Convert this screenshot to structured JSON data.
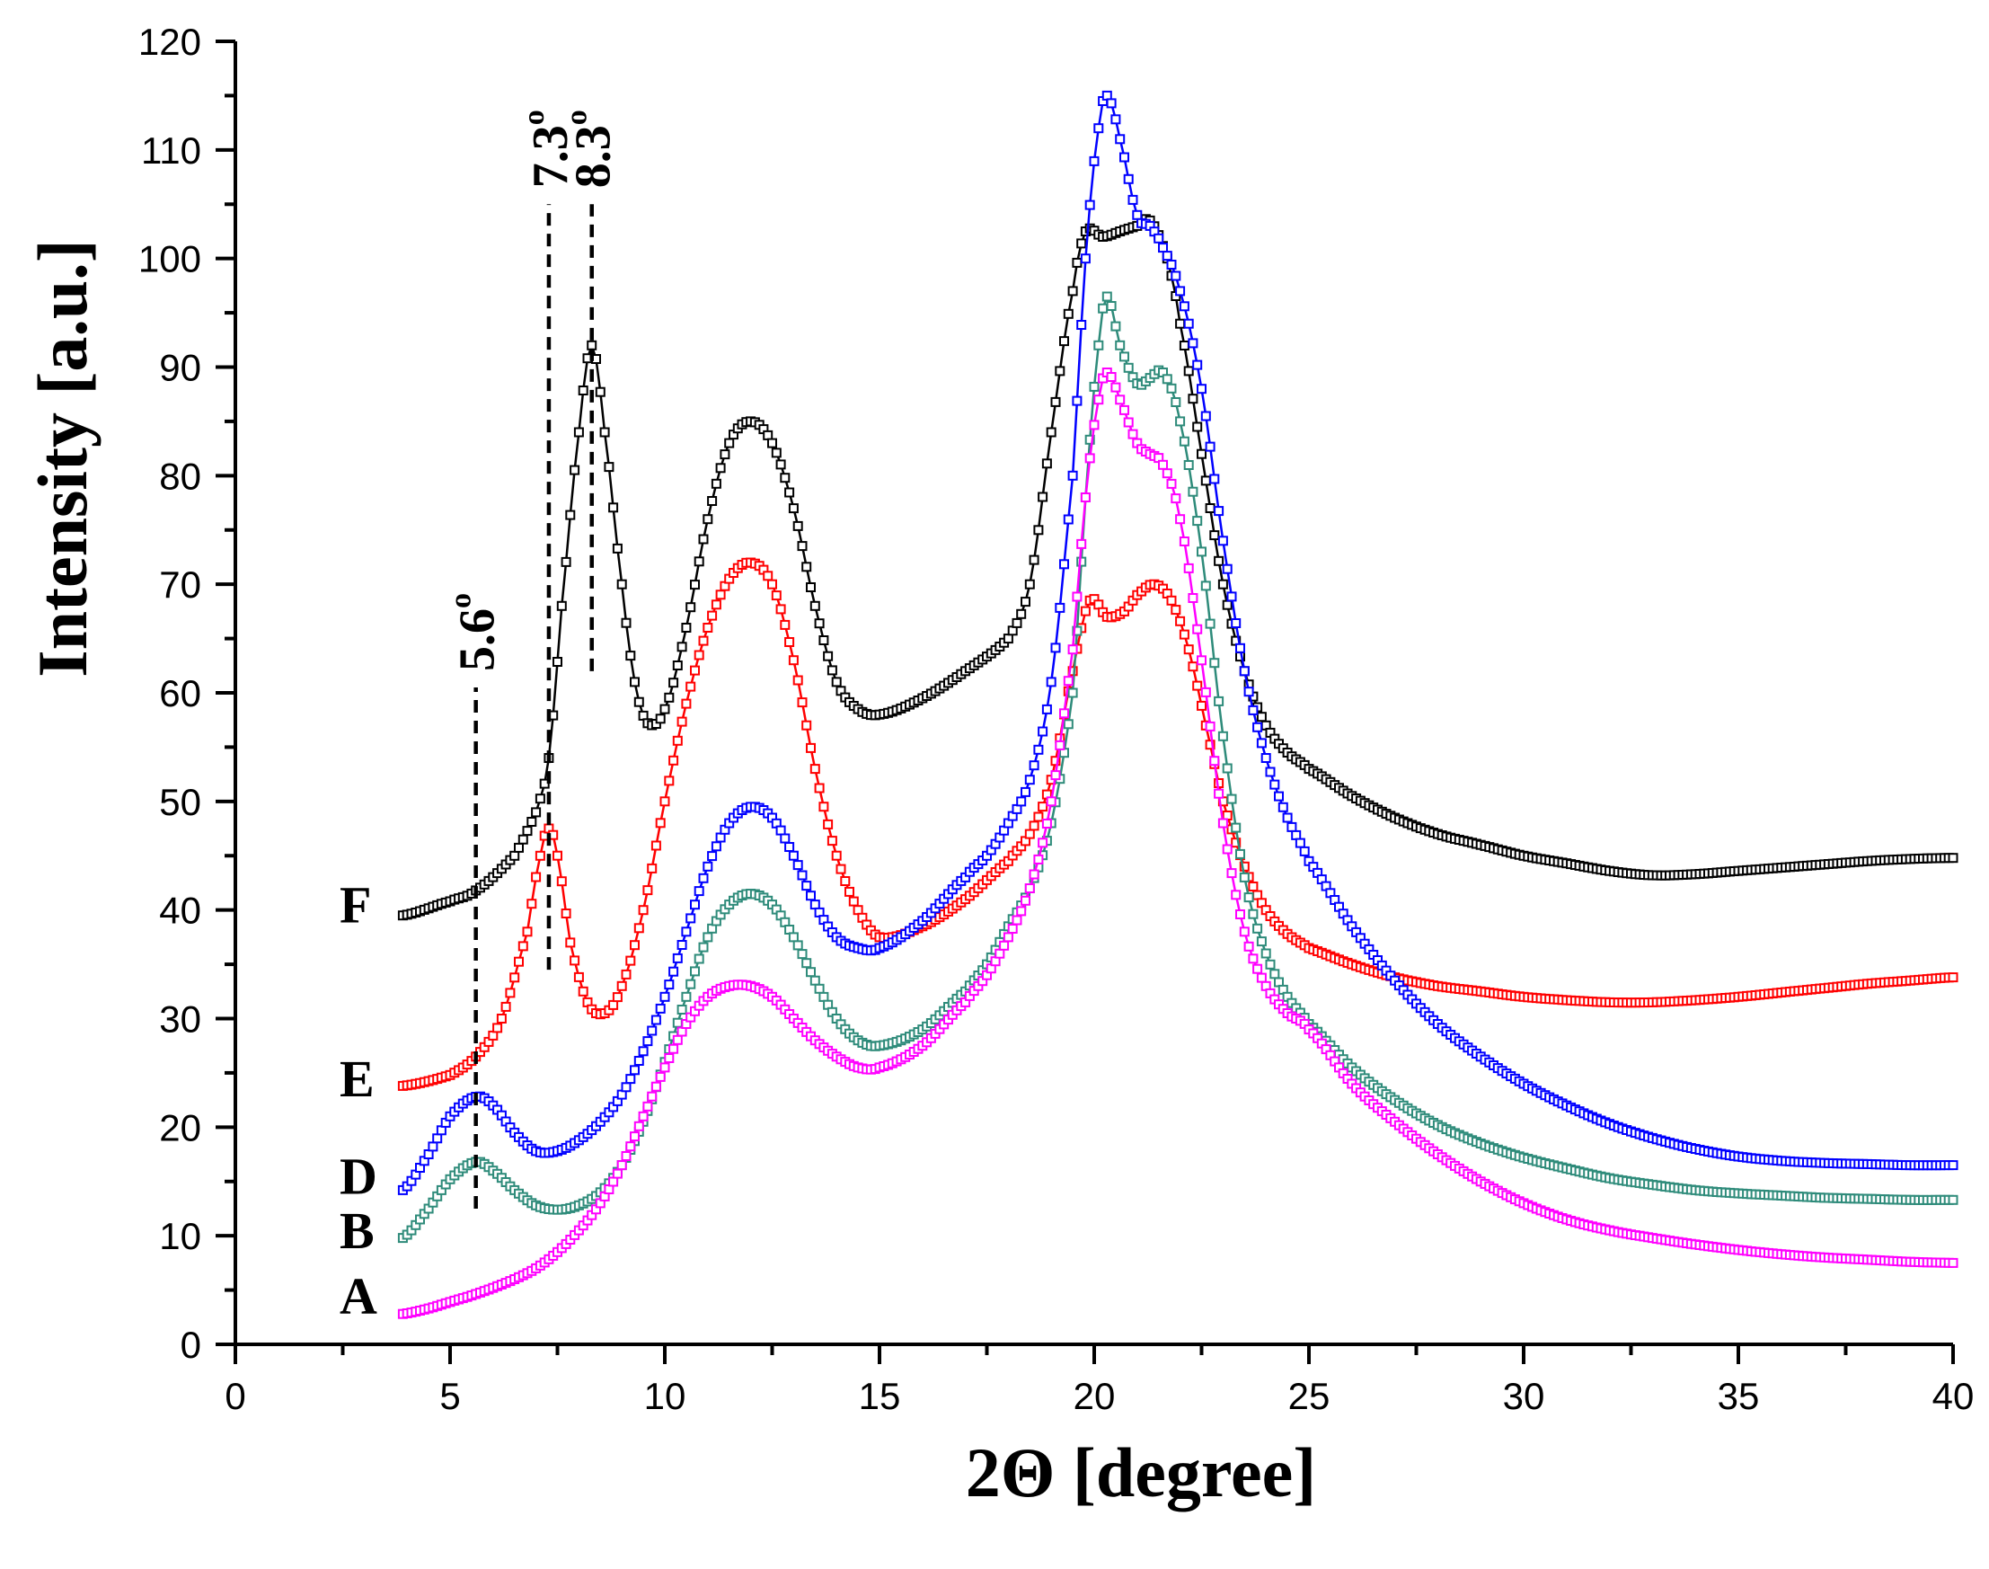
{
  "chart_data": {
    "type": "scatter",
    "xlabel": "2Θ [degree]",
    "ylabel": "Intensity [a.u.]",
    "xlim": [
      0,
      40
    ],
    "ylim": [
      0,
      120
    ],
    "x_ticks": [
      0,
      5,
      10,
      15,
      20,
      25,
      30,
      35,
      40
    ],
    "y_ticks": [
      0,
      10,
      20,
      30,
      40,
      50,
      60,
      70,
      80,
      90,
      100,
      110,
      120
    ],
    "grid": false,
    "legend": "none",
    "series": [
      {
        "name": "F",
        "color": "#000000",
        "x": [
          3.9,
          5.0,
          5.6,
          6.5,
          7.0,
          7.3,
          7.6,
          8.0,
          8.3,
          8.6,
          9.0,
          9.3,
          9.6,
          10.0,
          10.5,
          11.0,
          11.5,
          12.0,
          12.5,
          13.0,
          13.5,
          14.0,
          14.5,
          15.0,
          16.0,
          17.0,
          18.0,
          18.5,
          19.0,
          19.5,
          19.8,
          20.2,
          20.6,
          21.0,
          21.3,
          21.7,
          22.0,
          22.5,
          23.0,
          23.5,
          24.0,
          24.5,
          25.0,
          26.0,
          27.0,
          28.0,
          29.0,
          30.0,
          31.0,
          32.0,
          33.0,
          34.0,
          35.0,
          36.0,
          37.0,
          38.0,
          39.0,
          40.0
        ],
        "values": [
          39.5,
          40.8,
          41.8,
          45,
          49,
          54,
          68,
          84,
          92,
          84,
          70,
          61,
          57.2,
          58.5,
          66,
          76,
          83,
          85,
          83,
          77,
          68,
          61,
          58.5,
          58,
          59.5,
          62,
          65,
          70,
          84,
          97,
          102.5,
          102,
          102.5,
          103,
          103.5,
          100,
          94,
          82,
          70,
          62,
          57,
          54.5,
          53,
          50.5,
          48.5,
          47,
          46,
          45,
          44.3,
          43.6,
          43.2,
          43.3,
          43.6,
          43.9,
          44.2,
          44.5,
          44.7,
          44.8
        ]
      },
      {
        "name": "E",
        "color": "#ff0000",
        "x": [
          3.9,
          5.0,
          5.6,
          6.2,
          6.8,
          7.1,
          7.3,
          7.5,
          7.8,
          8.2,
          8.6,
          9.0,
          9.5,
          10.0,
          10.5,
          11.0,
          11.5,
          12.0,
          12.5,
          13.0,
          13.5,
          14.0,
          14.5,
          15.0,
          16.0,
          17.0,
          18.0,
          18.5,
          19.0,
          19.5,
          19.9,
          20.3,
          20.7,
          21.0,
          21.4,
          21.8,
          22.2,
          22.6,
          23.0,
          23.5,
          24.0,
          24.5,
          25.0,
          26.0,
          27.0,
          28.0,
          29.0,
          30.0,
          31.0,
          32.0,
          33.0,
          34.0,
          35.0,
          36.0,
          37.0,
          38.0,
          39.0,
          40.0
        ],
        "values": [
          23.8,
          24.8,
          26.5,
          30,
          38,
          45,
          47.5,
          45,
          37,
          31.5,
          30.5,
          33,
          40,
          50,
          59,
          66,
          70.5,
          72,
          70,
          63,
          53,
          45,
          40,
          37.5,
          38.5,
          41,
          44.5,
          47,
          52,
          62,
          68.5,
          67,
          67.5,
          69,
          70,
          68.5,
          64,
          57,
          50,
          44,
          40,
          37.8,
          36.5,
          35,
          33.8,
          33,
          32.5,
          32,
          31.7,
          31.5,
          31.5,
          31.7,
          32,
          32.4,
          32.8,
          33.2,
          33.5,
          33.8
        ]
      },
      {
        "name": "D",
        "color": "#0000ff",
        "x": [
          3.9,
          4.5,
          5.0,
          5.6,
          6.0,
          6.5,
          7.0,
          7.5,
          8.0,
          8.5,
          9.0,
          9.5,
          10.0,
          10.5,
          11.0,
          11.5,
          12.0,
          12.5,
          13.0,
          13.5,
          14.0,
          14.5,
          15.0,
          16.0,
          17.0,
          17.5,
          18.0,
          18.5,
          19.0,
          19.5,
          19.8,
          20.1,
          20.3,
          20.6,
          21.0,
          21.3,
          21.6,
          22.0,
          22.5,
          23.0,
          23.5,
          24.0,
          24.5,
          25.0,
          26.0,
          27.0,
          28.0,
          29.0,
          30.0,
          31.0,
          32.0,
          33.0,
          34.0,
          35.0,
          36.0,
          37.0,
          38.0,
          39.0,
          40.0
        ],
        "values": [
          14.2,
          17.5,
          21,
          22.8,
          22,
          19.5,
          17.8,
          17.8,
          18.8,
          20.5,
          23,
          27,
          32,
          38,
          44,
          48,
          49.5,
          48.5,
          45,
          40.5,
          37.5,
          36.5,
          36.5,
          39,
          43,
          45,
          48,
          52,
          61,
          80,
          100,
          112,
          115,
          111,
          104,
          103,
          101,
          97,
          88,
          74,
          62,
          54,
          48.5,
          44.5,
          38.5,
          33.5,
          29.5,
          26.5,
          24,
          22,
          20.3,
          19,
          18,
          17.3,
          16.9,
          16.7,
          16.6,
          16.5,
          16.5
        ]
      },
      {
        "name": "B",
        "color": "#2e8b7a",
        "x": [
          3.9,
          4.5,
          5.0,
          5.6,
          6.0,
          6.5,
          7.0,
          7.5,
          8.0,
          8.5,
          9.0,
          9.5,
          10.0,
          10.5,
          11.0,
          11.5,
          12.0,
          12.5,
          13.0,
          13.5,
          14.0,
          14.5,
          15.0,
          16.0,
          17.0,
          17.5,
          18.0,
          18.5,
          19.0,
          19.5,
          19.8,
          20.1,
          20.3,
          20.6,
          21.0,
          21.3,
          21.6,
          22.0,
          22.5,
          23.0,
          23.5,
          24.0,
          24.5,
          25.0,
          26.0,
          27.0,
          28.0,
          29.0,
          30.0,
          31.0,
          32.0,
          33.0,
          34.0,
          35.0,
          36.0,
          37.0,
          38.0,
          39.0,
          40.0
        ],
        "values": [
          9.8,
          12.5,
          15.2,
          16.8,
          16,
          14.2,
          12.8,
          12.4,
          12.8,
          14,
          16.5,
          20.5,
          26,
          32,
          37.5,
          40.5,
          41.5,
          40.5,
          37.5,
          33.5,
          30,
          28,
          27.5,
          29,
          32.5,
          35,
          38.5,
          42,
          48,
          60,
          78,
          92,
          96.5,
          92,
          88.5,
          89,
          89.5,
          85,
          73,
          56,
          43,
          36,
          32,
          29.5,
          25.5,
          22.5,
          20.2,
          18.5,
          17.2,
          16.2,
          15.3,
          14.7,
          14.2,
          13.9,
          13.7,
          13.5,
          13.4,
          13.3,
          13.3
        ]
      },
      {
        "name": "A",
        "color": "#ff00ff",
        "x": [
          3.9,
          4.5,
          5.0,
          5.5,
          6.0,
          6.5,
          7.0,
          7.5,
          8.0,
          8.5,
          9.0,
          9.5,
          10.0,
          10.5,
          11.0,
          11.5,
          12.0,
          12.5,
          13.0,
          13.5,
          14.0,
          14.5,
          15.0,
          16.0,
          17.0,
          17.5,
          18.0,
          18.5,
          19.0,
          19.5,
          19.8,
          20.1,
          20.3,
          20.6,
          21.0,
          21.3,
          21.6,
          22.0,
          22.5,
          23.0,
          23.5,
          24.0,
          24.5,
          25.0,
          26.0,
          27.0,
          28.0,
          29.0,
          30.0,
          31.0,
          32.0,
          33.0,
          34.0,
          35.0,
          36.0,
          37.0,
          38.0,
          39.0,
          40.0
        ],
        "values": [
          2.8,
          3.3,
          3.9,
          4.5,
          5.2,
          6.0,
          7.0,
          8.5,
          10.5,
          13,
          16.5,
          21,
          25.5,
          29.5,
          32,
          33,
          33,
          32,
          30,
          28,
          26.5,
          25.5,
          25.5,
          27.5,
          31.5,
          34,
          37.5,
          42,
          50,
          64,
          78,
          87,
          89.5,
          87,
          83,
          82,
          81,
          76,
          63,
          48,
          38,
          33,
          30.5,
          29,
          24,
          20.5,
          17.5,
          15,
          13,
          11.5,
          10.5,
          9.8,
          9.2,
          8.7,
          8.3,
          8,
          7.8,
          7.6,
          7.5
        ]
      }
    ],
    "series_labels": [
      {
        "text": "F",
        "y": 40.5
      },
      {
        "text": "E",
        "y": 24.5
      },
      {
        "text": "D",
        "y": 15.5
      },
      {
        "text": "B",
        "y": 10.5
      },
      {
        "text": "A",
        "y": 4.5
      }
    ],
    "annotations": [
      {
        "text": "5.6",
        "sup": "o",
        "x": 5.6,
        "y_from": 12.5,
        "y_to": 60.5
      },
      {
        "text": "7.3",
        "sup": "o",
        "x": 7.3,
        "y_from": 34.5,
        "y_to": 105
      },
      {
        "text": "8.3",
        "sup": "o",
        "x": 8.3,
        "y_from": 62,
        "y_to": 105
      }
    ]
  }
}
